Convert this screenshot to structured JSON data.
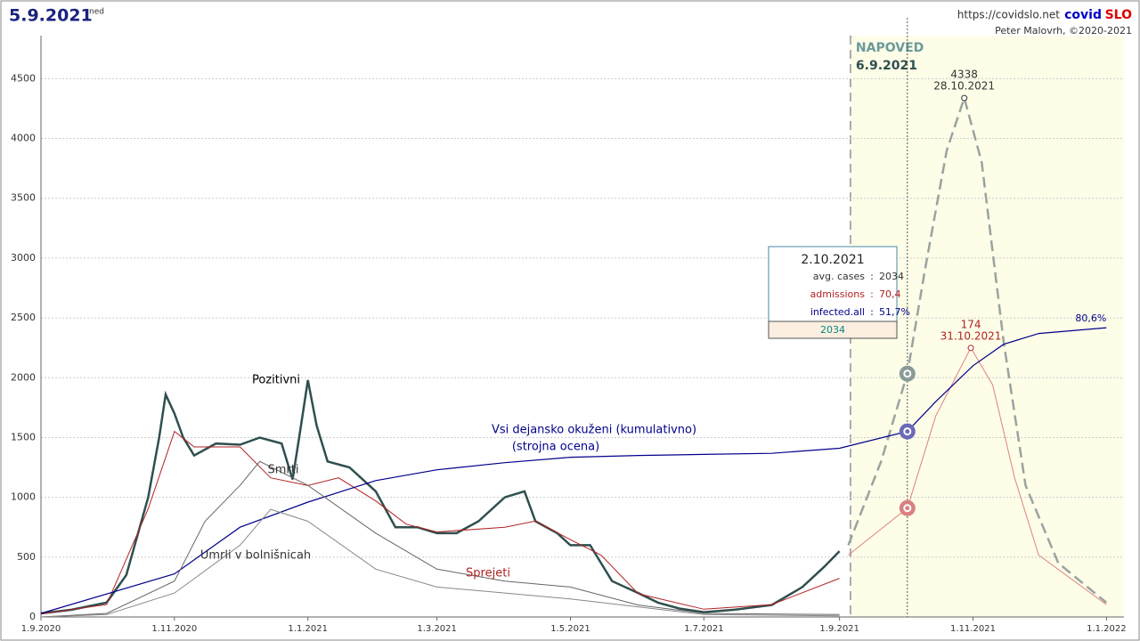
{
  "chart_data": {
    "type": "line",
    "title": "5.9.2021",
    "weekday": "ned",
    "site": "https://covidslo.net",
    "brand": [
      "covid",
      "SLO"
    ],
    "author": "Peter Malovrh, ©2020-2021",
    "forecast_label": "NAPOVED",
    "forecast_start": "6.9.2021",
    "xlim": [
      "1.9.2020",
      "9.1.2022"
    ],
    "xticks": [
      "1.9.2020",
      "1.11.2020",
      "1.1.2021",
      "1.3.2021",
      "1.5.2021",
      "1.7.2021",
      "1.9.2021",
      "1.11.2021",
      "1.1.2022"
    ],
    "ylim": [
      0,
      4860
    ],
    "yticks": [
      0,
      500,
      1000,
      1500,
      2000,
      2500,
      3000,
      3500,
      4000,
      4500
    ],
    "y2lim": [
      0,
      376
    ],
    "y3lim": [
      0,
      162
    ],
    "grid": true,
    "series": [
      {
        "name": "Pozitivni",
        "color": "#2f4f4f",
        "x": [
          "1.9.2020",
          "15.9.2020",
          "1.10.2020",
          "10.10.2020",
          "20.10.2020",
          "25.10.2020",
          "28.10.2020",
          "1.11.2020",
          "5.11.2020",
          "10.11.2020",
          "20.11.2020",
          "1.12.2020",
          "10.12.2020",
          "20.12.2020",
          "25.12.2020",
          "28.12.2020",
          "1.1.2021",
          "5.1.2021",
          "10.1.2021",
          "20.1.2021",
          "1.2.2021",
          "10.2.2021",
          "20.2.2021",
          "1.3.2021",
          "10.3.2021",
          "20.3.2021",
          "1.4.2021",
          "10.4.2021",
          "15.4.2021",
          "25.4.2021",
          "1.5.2021",
          "10.5.2021",
          "20.5.2021",
          "1.6.2021",
          "10.6.2021",
          "20.6.2021",
          "1.7.2021",
          "15.7.2021",
          "1.8.2021",
          "15.8.2021",
          "25.8.2021",
          "1.9.2021"
        ],
        "values": [
          30,
          60,
          120,
          350,
          1000,
          1500,
          1860,
          1700,
          1500,
          1350,
          1450,
          1440,
          1500,
          1450,
          1150,
          1500,
          1980,
          1600,
          1300,
          1250,
          1050,
          750,
          750,
          700,
          700,
          800,
          1000,
          1050,
          800,
          700,
          600,
          600,
          300,
          200,
          120,
          70,
          40,
          60,
          100,
          250,
          420,
          550
        ]
      },
      {
        "color": "#9aa3a0",
        "x": [
          "5.9.2021",
          "20.9.2021",
          "2.10.2021",
          "10.10.2021",
          "20.10.2021",
          "28.10.2021",
          "5.11.2021",
          "15.11.2021",
          "25.11.2021",
          "10.12.2021",
          "1.1.2022"
        ],
        "values": [
          600,
          1300,
          2034,
          2900,
          3900,
          4338,
          3800,
          2300,
          1100,
          450,
          120
        ]
      },
      {
        "name": "Sprejeti",
        "color": "#b22222",
        "axis": "y2",
        "x": [
          "1.9.2020",
          "1.10.2020",
          "20.10.2020",
          "1.11.2020",
          "10.11.2020",
          "1.12.2020",
          "15.12.2020",
          "1.1.2021",
          "15.1.2021",
          "1.2.2021",
          "15.2.2021",
          "1.3.2021",
          "1.4.2021",
          "15.4.2021",
          "1.5.2021",
          "15.5.2021",
          "1.6.2021",
          "1.7.2021",
          "1.8.2021",
          "1.9.2021"
        ],
        "values": [
          2,
          8,
          70,
          120,
          110,
          110,
          90,
          85,
          90,
          75,
          60,
          55,
          58,
          62,
          50,
          40,
          15,
          5,
          8,
          25
        ]
      },
      {
        "color": "#e08080",
        "axis": "y2",
        "x": [
          "5.9.2021",
          "2.10.2021",
          "15.10.2021",
          "31.10.2021",
          "10.11.2021",
          "20.11.2021",
          "1.12.2021",
          "1.1.2022"
        ],
        "values": [
          40,
          70.4,
          130,
          174,
          150,
          90,
          40,
          8
        ]
      },
      {
        "name": "Vsi dejansko okuženi (kumulativno)",
        "note": "(strojna ocena)",
        "color": "#00008b",
        "axis": "y3",
        "x": [
          "1.9.2020",
          "1.11.2020",
          "1.12.2020",
          "1.1.2021",
          "1.2.2021",
          "1.3.2021",
          "1.4.2021",
          "1.5.2021",
          "1.6.2021",
          "1.7.2021",
          "1.8.2021",
          "1.9.2021",
          "2.10.2021",
          "15.10.2021",
          "1.11.2021",
          "15.11.2021",
          "1.12.2021",
          "1.1.2022"
        ],
        "values": [
          1,
          12,
          25,
          32,
          38,
          41,
          43,
          44.5,
          45,
          45.3,
          45.6,
          47,
          51.7,
          60,
          70,
          76,
          79,
          80.6
        ],
        "value_labels": [
          null,
          null,
          null,
          null,
          null,
          null,
          null,
          null,
          null,
          null,
          null,
          null,
          null,
          null,
          null,
          null,
          null,
          "80,6%"
        ]
      },
      {
        "name": "Smrti",
        "color": "#666666",
        "x": [
          "1.9.2020",
          "1.10.2020",
          "1.11.2020",
          "15.11.2020",
          "1.12.2020",
          "10.12.2020",
          "1.1.2021",
          "1.2.2021",
          "1.3.2021",
          "1.4.2021",
          "1.5.2021",
          "1.6.2021",
          "1.7.2021",
          "1.9.2021"
        ],
        "values": [
          0,
          30,
          300,
          800,
          1100,
          1300,
          1100,
          700,
          400,
          300,
          250,
          100,
          30,
          20
        ]
      },
      {
        "name": "Umrli v bolnišnicah",
        "color": "#888888",
        "x": [
          "1.9.2020",
          "1.10.2020",
          "1.11.2020",
          "1.12.2020",
          "15.12.2020",
          "1.1.2021",
          "1.2.2021",
          "1.3.2021",
          "1.4.2021",
          "1.5.2021",
          "1.7.2021",
          "1.9.2021"
        ],
        "values": [
          0,
          20,
          200,
          600,
          900,
          800,
          400,
          250,
          200,
          150,
          20,
          10
        ]
      }
    ],
    "tooltip": {
      "date": "2.10.2021",
      "rows": [
        {
          "label": "avg. cases",
          "sep": ":",
          "value": "2034"
        },
        {
          "label": "admissions",
          "sep": ":",
          "value": "70,4"
        },
        {
          "label": "infected.all",
          "sep": ":",
          "value": "51,7%"
        }
      ],
      "footer": "2034"
    }
  }
}
